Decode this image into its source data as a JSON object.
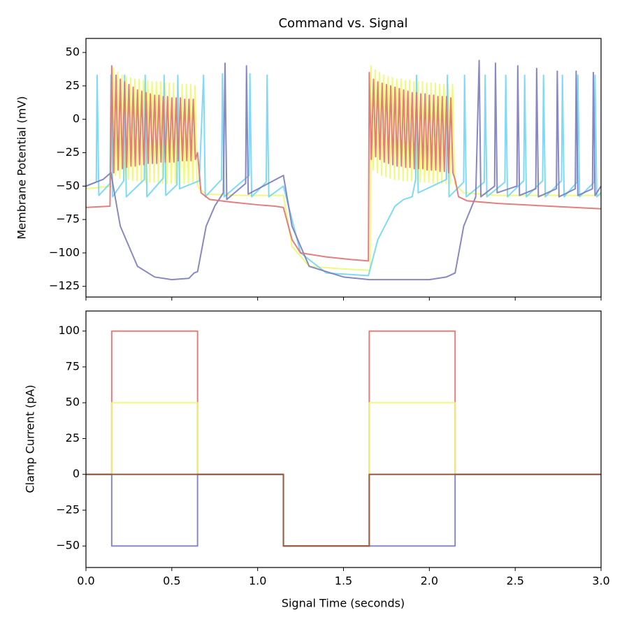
{
  "chart_data": [
    {
      "type": "line",
      "title": "Command vs. Signal",
      "y_label": "Membrane Potential (mV)",
      "xlim": [
        0,
        3
      ],
      "xticks": [
        0,
        0.5,
        1,
        1.5,
        2,
        2.5,
        3
      ],
      "ylim": [
        -133,
        60.5
      ],
      "yticks": [
        50,
        25,
        0,
        {
          "value": -25,
          "label": "−25"
        },
        {
          "value": -50,
          "label": "−50"
        },
        {
          "value": -75,
          "label": "−75"
        },
        {
          "value": -100,
          "label": "−100"
        },
        {
          "value": -125,
          "label": "−125"
        }
      ],
      "series": [
        {
          "color": "#eef870",
          "x": [
            0,
            0.155,
            0.16,
            0.172,
            0.185,
            0.197,
            0.21,
            0.222,
            0.235,
            0.247,
            0.26,
            0.272,
            0.285,
            0.297,
            0.31,
            0.322,
            0.335,
            0.347,
            0.36,
            0.372,
            0.385,
            0.397,
            0.41,
            0.422,
            0.435,
            0.447,
            0.46,
            0.472,
            0.485,
            0.497,
            0.51,
            0.522,
            0.535,
            0.547,
            0.56,
            0.572,
            0.585,
            0.597,
            0.61,
            0.622,
            0.635,
            0.647,
            0.66,
            0.7,
            0.9,
            1.15,
            1.2,
            1.3,
            1.5,
            1.655,
            1.66,
            1.672,
            1.685,
            1.697,
            1.71,
            1.722,
            1.735,
            1.747,
            1.76,
            1.772,
            1.785,
            1.797,
            1.81,
            1.822,
            1.835,
            1.847,
            1.86,
            1.872,
            1.885,
            1.897,
            1.91,
            1.922,
            1.935,
            1.947,
            1.96,
            1.972,
            1.985,
            1.997,
            2.01,
            2.022,
            2.035,
            2.047,
            2.06,
            2.072,
            2.085,
            2.097,
            2.11,
            2.122,
            2.135,
            2.147,
            2.16,
            2.2,
            2.4,
            3.0
          ],
          "values": [
            -52,
            -50,
            38,
            -42,
            35,
            -44,
            33,
            -45,
            32,
            -45,
            31,
            -46,
            30,
            -46,
            30,
            -46,
            29,
            -47,
            29,
            -47,
            28,
            -47,
            28,
            -47,
            28,
            -48,
            27,
            -48,
            27,
            -48,
            27,
            -48,
            26,
            -48,
            26,
            -48,
            26,
            -48,
            26,
            -48,
            25,
            -48,
            -52,
            -56,
            -57,
            -57,
            -95,
            -110,
            -112,
            -113,
            40,
            -38,
            37,
            -40,
            35,
            -42,
            33,
            -43,
            32,
            -44,
            31,
            -45,
            30,
            -45,
            30,
            -46,
            29,
            -46,
            29,
            -46,
            28,
            -47,
            28,
            -47,
            28,
            -47,
            27,
            -47,
            27,
            -48,
            27,
            -48,
            26,
            -48,
            26,
            -48,
            26,
            -48,
            26,
            -48,
            -50,
            -55,
            -57,
            -57
          ]
        },
        {
          "color": "#70d6f5",
          "x": [
            0,
            0.06,
            0.065,
            0.075,
            0.14,
            0.145,
            0.155,
            0.22,
            0.225,
            0.235,
            0.34,
            0.345,
            0.355,
            0.45,
            0.455,
            0.465,
            0.53,
            0.535,
            0.545,
            0.66,
            0.685,
            0.695,
            0.79,
            0.795,
            0.805,
            0.95,
            0.955,
            0.965,
            1.05,
            1.055,
            1.065,
            1.15,
            1.25,
            1.4,
            1.645,
            1.7,
            1.8,
            1.85,
            1.9,
            1.92,
            1.925,
            1.935,
            2.1,
            2.105,
            2.115,
            2.2,
            2.205,
            2.215,
            2.32,
            2.325,
            2.335,
            2.44,
            2.445,
            2.455,
            2.55,
            2.555,
            2.565,
            2.66,
            2.665,
            2.675,
            2.77,
            2.775,
            2.785,
            2.86,
            2.865,
            2.875,
            2.96,
            2.965,
            2.975,
            3.0
          ],
          "values": [
            -50,
            -47,
            33,
            -57,
            -48,
            33,
            -58,
            -46,
            33,
            -58,
            -45,
            33,
            -58,
            -44,
            33,
            -57,
            -49,
            33,
            -52,
            -46,
            33,
            -58,
            -45,
            34,
            -58,
            -42,
            34,
            -58,
            -47,
            33,
            -58,
            -50,
            -100,
            -115,
            -117,
            -90,
            -65,
            -60,
            -58,
            -45,
            33,
            -55,
            -45,
            33,
            -58,
            -47,
            33,
            -58,
            -47,
            33,
            -58,
            -47,
            33,
            -58,
            -46,
            33,
            -58,
            -46,
            33,
            -58,
            -46,
            33,
            -58,
            -47,
            33,
            -58,
            -47,
            33,
            -58,
            -55
          ]
        },
        {
          "color": "#7b7bbd",
          "x": [
            0,
            0.1,
            0.145,
            0.2,
            0.3,
            0.4,
            0.5,
            0.6,
            0.63,
            0.65,
            0.7,
            0.75,
            0.8,
            0.81,
            0.82,
            0.93,
            0.935,
            0.945,
            1.15,
            1.2,
            1.3,
            1.5,
            1.65,
            2.0,
            2.1,
            2.15,
            2.2,
            2.27,
            2.29,
            2.3,
            2.38,
            2.385,
            2.395,
            2.51,
            2.515,
            2.525,
            2.62,
            2.625,
            2.635,
            2.74,
            2.745,
            2.755,
            2.85,
            2.855,
            2.865,
            2.95,
            2.955,
            2.965,
            3.0
          ],
          "values": [
            -50,
            -45,
            -40,
            -80,
            -110,
            -118,
            -120,
            -119,
            -115,
            -114,
            -80,
            -65,
            -55,
            42,
            -60,
            -48,
            40,
            -56,
            -42,
            -80,
            -110,
            -118,
            -120,
            -120,
            -118,
            -115,
            -80,
            -58,
            44,
            -58,
            -50,
            42,
            -55,
            -50,
            40,
            -57,
            -52,
            38,
            -58,
            -52,
            36,
            -58,
            -52,
            36,
            -57,
            -52,
            35,
            -57,
            -50
          ]
        },
        {
          "color": "#e07171",
          "x": [
            0,
            0.14,
            0.15,
            0.162,
            0.175,
            0.187,
            0.2,
            0.212,
            0.225,
            0.237,
            0.25,
            0.262,
            0.275,
            0.287,
            0.3,
            0.312,
            0.325,
            0.337,
            0.35,
            0.362,
            0.375,
            0.387,
            0.4,
            0.412,
            0.425,
            0.437,
            0.45,
            0.462,
            0.475,
            0.487,
            0.5,
            0.512,
            0.525,
            0.537,
            0.55,
            0.562,
            0.575,
            0.587,
            0.6,
            0.612,
            0.625,
            0.637,
            0.65,
            0.67,
            0.72,
            0.85,
            1.0,
            1.1,
            1.15,
            1.2,
            1.25,
            1.4,
            1.55,
            1.645,
            1.65,
            1.662,
            1.675,
            1.687,
            1.7,
            1.712,
            1.725,
            1.737,
            1.75,
            1.762,
            1.775,
            1.787,
            1.8,
            1.812,
            1.825,
            1.837,
            1.85,
            1.862,
            1.875,
            1.887,
            1.9,
            1.912,
            1.925,
            1.937,
            1.95,
            1.962,
            1.975,
            1.987,
            2.0,
            2.012,
            2.025,
            2.037,
            2.05,
            2.062,
            2.075,
            2.087,
            2.1,
            2.112,
            2.125,
            2.137,
            2.15,
            2.17,
            2.22,
            2.4,
            2.7,
            3.0
          ],
          "values": [
            -66,
            -65,
            40,
            -40,
            33,
            -38,
            30,
            -37,
            28,
            -36,
            26,
            -35,
            24,
            -35,
            22,
            -34,
            21,
            -34,
            20,
            -33,
            19,
            -33,
            18,
            -33,
            18,
            -32,
            17,
            -32,
            17,
            -32,
            16,
            -32,
            16,
            -31,
            16,
            -31,
            15,
            -31,
            15,
            -31,
            15,
            -30,
            -25,
            -55,
            -60,
            -62,
            -64,
            -65,
            -66,
            -90,
            -100,
            -103,
            -105,
            -106,
            35,
            -30,
            30,
            -28,
            28,
            -30,
            27,
            -32,
            26,
            -33,
            25,
            -34,
            24,
            -35,
            23,
            -35,
            22,
            -36,
            21,
            -36,
            20,
            -37,
            20,
            -37,
            19,
            -37,
            19,
            -38,
            18,
            -38,
            18,
            -38,
            17,
            -39,
            17,
            -39,
            17,
            -40,
            16,
            -40,
            -45,
            -58,
            -61,
            -63,
            -65,
            -67
          ]
        }
      ]
    },
    {
      "type": "line",
      "x_label": "Signal Time (seconds)",
      "y_label": "Clamp Current (pA)",
      "x": [
        0,
        0.15,
        0.15,
        0.65,
        0.65,
        1.15,
        1.15,
        1.65,
        1.65,
        2.15,
        2.15,
        3.0
      ],
      "xlim": [
        0,
        3
      ],
      "xticks": [
        {
          "value": 0,
          "label": "0.0"
        },
        0.5,
        {
          "value": 1,
          "label": "1.0"
        },
        1.5,
        {
          "value": 2,
          "label": "2.0"
        },
        2.5,
        {
          "value": 3,
          "label": "3.0"
        }
      ],
      "ylim": [
        -65,
        114
      ],
      "yticks": [
        100,
        75,
        50,
        25,
        0,
        {
          "value": -25,
          "label": "−25"
        },
        {
          "value": -50,
          "label": "−50"
        }
      ],
      "series": [
        {
          "color": "#e07171",
          "values": [
            0,
            0,
            100,
            100,
            0,
            0,
            -50,
            -50,
            100,
            100,
            0,
            0
          ]
        },
        {
          "color": "#eef870",
          "values": [
            0,
            0,
            50,
            50,
            0,
            0,
            -50,
            -50,
            50,
            50,
            0,
            0
          ]
        },
        {
          "color": "#70d6f5",
          "values": [
            0,
            0,
            0,
            0,
            0,
            0,
            -50,
            -50,
            0,
            0,
            0,
            0
          ]
        },
        {
          "color": "#7b7bbd",
          "values": [
            0,
            0,
            -50,
            -50,
            0,
            0,
            -50,
            -50,
            -50,
            -50,
            0,
            0
          ]
        },
        {
          "color": "#a0522d",
          "values": [
            0,
            0,
            0,
            0,
            0,
            0,
            -50,
            -50,
            0,
            0,
            0,
            0
          ]
        }
      ]
    }
  ]
}
